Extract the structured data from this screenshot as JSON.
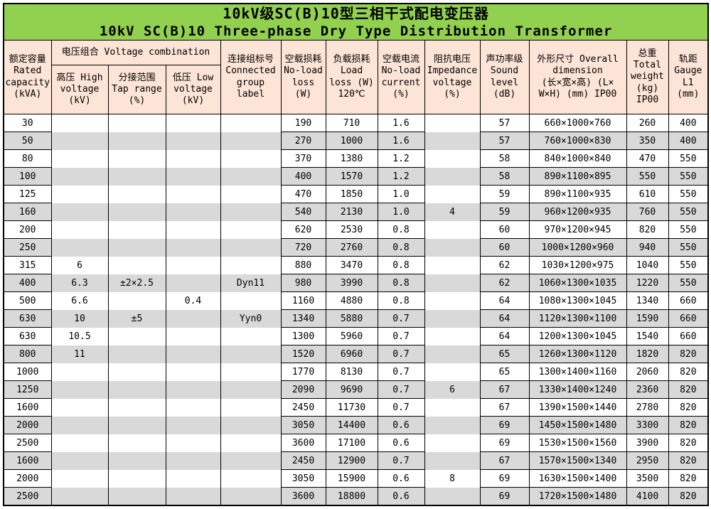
{
  "title": {
    "zh": "10kV级SC(B)10型三相干式配电变压器",
    "en": "10kV SC(B)10 Three-phase Dry Type Distribution Transformer"
  },
  "colors": {
    "title_band": "#92D050",
    "header_fill": "#FCE4D6",
    "stripe": "#D9D9D9",
    "border": "#000000"
  },
  "header": {
    "capacity": "额定容量\nRated\ncapacity\n(kVA)",
    "voltage_combination": "电压组合 Voltage combination",
    "high_voltage": "高压 High\nvoltage\n(kV)",
    "tap_range": "分接范围\nTap range\n(%)",
    "low_voltage": "低压 Low\nvoltage\n(kV)",
    "group": "连接组标号\nConnected\ngroup\nlabel",
    "no_load_loss": "空载损耗\nNo-load\nloss\n(W)",
    "load_loss": "负载损耗\nLoad\nloss (W)\n120℃",
    "no_load_current": "空载电流\nNo-load\ncurrent\n(%)",
    "impedance": "阻抗电压\nImpedance\nvoltage\n(%)",
    "sound": "声功率级\nSound\nlevel\n(dB)",
    "dimension": "外形尺寸 Overall\ndimension\n(长×宽×高) (L×\nW×H) (mm) IP00",
    "weight": "总重\nTotal\nweight\n(kg)\nIP00",
    "gauge": "轨距\nGauge\nL1\n(mm)"
  },
  "table": {
    "column_keys": [
      "capacity",
      "high-voltage",
      "tap-range",
      "low-voltage",
      "group",
      "no-load-loss",
      "load-loss",
      "no-load-current",
      "impedance",
      "sound",
      "dimension",
      "weight",
      "gauge"
    ],
    "rows": [
      [
        "30",
        "",
        "",
        "",
        "",
        "190",
        "710",
        "1.6",
        "",
        "57",
        "660×1000×760",
        "260",
        "400"
      ],
      [
        "50",
        "",
        "",
        "",
        "",
        "270",
        "1000",
        "1.6",
        "",
        "57",
        "760×1000×830",
        "350",
        "400"
      ],
      [
        "80",
        "",
        "",
        "",
        "",
        "370",
        "1380",
        "1.2",
        "",
        "58",
        "840×1000×840",
        "470",
        "550"
      ],
      [
        "100",
        "",
        "",
        "",
        "",
        "400",
        "1570",
        "1.2",
        "",
        "58",
        "890×1100×895",
        "550",
        "550"
      ],
      [
        "125",
        "",
        "",
        "",
        "",
        "470",
        "1850",
        "1.0",
        "",
        "59",
        "890×1100×935",
        "610",
        "550"
      ],
      [
        "160",
        "",
        "",
        "",
        "",
        "540",
        "2130",
        "1.0",
        "4",
        "59",
        "960×1200×935",
        "760",
        "550"
      ],
      [
        "200",
        "",
        "",
        "",
        "",
        "620",
        "2530",
        "0.8",
        "",
        "60",
        "970×1200×945",
        "820",
        "550"
      ],
      [
        "250",
        "",
        "",
        "",
        "",
        "720",
        "2760",
        "0.8",
        "",
        "60",
        "1000×1200×960",
        "940",
        "550"
      ],
      [
        "315",
        "6",
        "",
        "",
        "",
        "880",
        "3470",
        "0.8",
        "",
        "62",
        "1030×1200×975",
        "1040",
        "550"
      ],
      [
        "400",
        "6.3",
        "±2×2.5",
        "",
        "Dyn11",
        "980",
        "3990",
        "0.8",
        "",
        "62",
        "1060×1300×1035",
        "1220",
        "550"
      ],
      [
        "500",
        "6.6",
        "",
        "0.4",
        "",
        "1160",
        "4880",
        "0.8",
        "",
        "64",
        "1080×1300×1045",
        "1340",
        "660"
      ],
      [
        "630",
        "10",
        "±5",
        "",
        "Yyn0",
        "1340",
        "5880",
        "0.7",
        "",
        "64",
        "1120×1300×1100",
        "1590",
        "660"
      ],
      [
        "630",
        "10.5",
        "",
        "",
        "",
        "1300",
        "5960",
        "0.7",
        "",
        "64",
        "1200×1300×1045",
        "1540",
        "660"
      ],
      [
        "800",
        "11",
        "",
        "",
        "",
        "1520",
        "6960",
        "0.7",
        "",
        "65",
        "1260×1300×1120",
        "1820",
        "820"
      ],
      [
        "1000",
        "",
        "",
        "",
        "",
        "1770",
        "8130",
        "0.7",
        "",
        "65",
        "1300×1400×1160",
        "2060",
        "820"
      ],
      [
        "1250",
        "",
        "",
        "",
        "",
        "2090",
        "9690",
        "0.7",
        "6",
        "67",
        "1330×1400×1240",
        "2360",
        "820"
      ],
      [
        "1600",
        "",
        "",
        "",
        "",
        "2450",
        "11730",
        "0.7",
        "",
        "67",
        "1390×1500×1440",
        "2780",
        "820"
      ],
      [
        "2000",
        "",
        "",
        "",
        "",
        "3050",
        "14400",
        "0.6",
        "",
        "69",
        "1450×1500×1480",
        "3300",
        "820"
      ],
      [
        "2500",
        "",
        "",
        "",
        "",
        "3600",
        "17100",
        "0.6",
        "",
        "69",
        "1530×1500×1560",
        "3900",
        "820"
      ],
      [
        "1600",
        "",
        "",
        "",
        "",
        "2450",
        "12900",
        "0.7",
        "",
        "67",
        "1570×1500×1340",
        "2950",
        "820"
      ],
      [
        "2000",
        "",
        "",
        "",
        "",
        "3050",
        "15900",
        "0.6",
        "8",
        "69",
        "1630×1500×1400",
        "3500",
        "820"
      ],
      [
        "2500",
        "",
        "",
        "",
        "",
        "3600",
        "18800",
        "0.6",
        "",
        "69",
        "1720×1500×1480",
        "4100",
        "820"
      ]
    ]
  }
}
